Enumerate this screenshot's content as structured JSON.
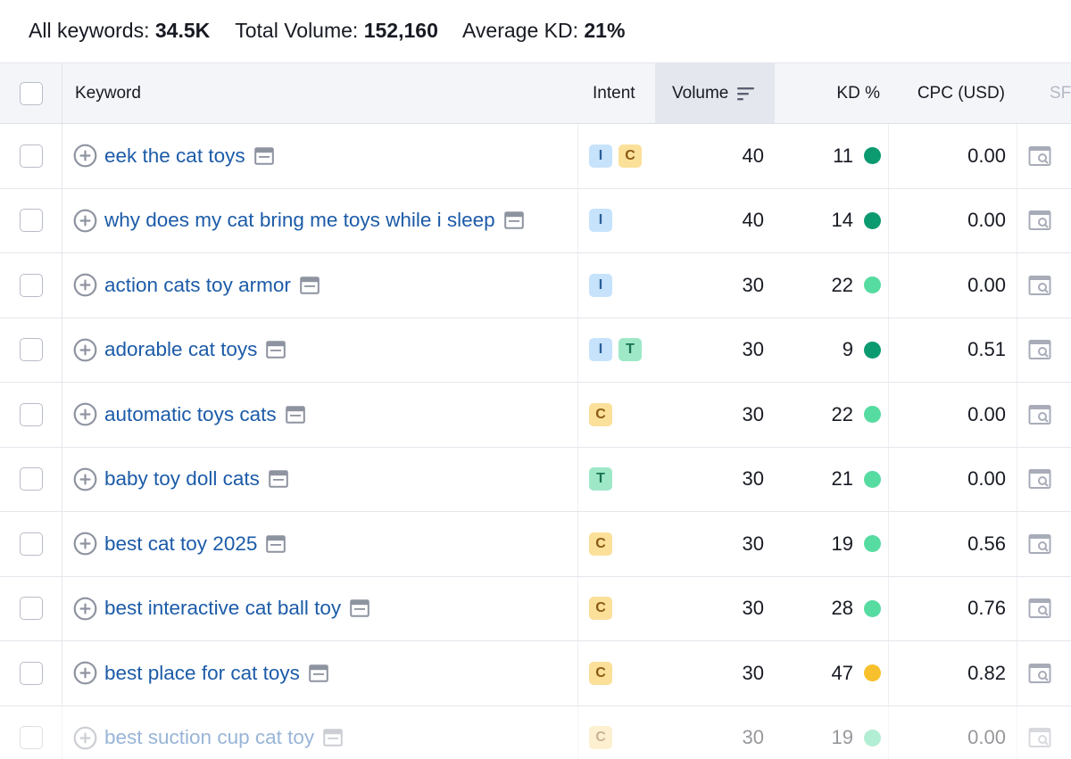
{
  "summary": {
    "all_keywords_label": "All keywords:",
    "all_keywords_value": "34.5K",
    "total_volume_label": "Total Volume:",
    "total_volume_value": "152,160",
    "avg_kd_label": "Average KD:",
    "avg_kd_value": "21%"
  },
  "columns": {
    "keyword": "Keyword",
    "intent": "Intent",
    "volume": "Volume",
    "kd": "KD %",
    "cpc": "CPC (USD)",
    "serp": "SF"
  },
  "colors": {
    "kd_easy": "#0c9a70",
    "kd_possible": "#56dba0",
    "kd_medium": "#f7c02c"
  },
  "rows": [
    {
      "keyword": "eek the cat toys",
      "intents": [
        "I",
        "C"
      ],
      "volume": "40",
      "kd": "11",
      "kd_color": "#0c9a70",
      "cpc": "0.00"
    },
    {
      "keyword": "why does my cat bring me toys while i sleep",
      "intents": [
        "I"
      ],
      "volume": "40",
      "kd": "14",
      "kd_color": "#0c9a70",
      "cpc": "0.00"
    },
    {
      "keyword": "action cats toy armor",
      "intents": [
        "I"
      ],
      "volume": "30",
      "kd": "22",
      "kd_color": "#56dba0",
      "cpc": "0.00"
    },
    {
      "keyword": "adorable cat toys",
      "intents": [
        "I",
        "T"
      ],
      "volume": "30",
      "kd": "9",
      "kd_color": "#0c9a70",
      "cpc": "0.51"
    },
    {
      "keyword": "automatic toys cats",
      "intents": [
        "C"
      ],
      "volume": "30",
      "kd": "22",
      "kd_color": "#56dba0",
      "cpc": "0.00"
    },
    {
      "keyword": "baby toy doll cats",
      "intents": [
        "T"
      ],
      "volume": "30",
      "kd": "21",
      "kd_color": "#56dba0",
      "cpc": "0.00"
    },
    {
      "keyword": "best cat toy 2025",
      "intents": [
        "C"
      ],
      "volume": "30",
      "kd": "19",
      "kd_color": "#56dba0",
      "cpc": "0.56"
    },
    {
      "keyword": "best interactive cat ball toy",
      "intents": [
        "C"
      ],
      "volume": "30",
      "kd": "28",
      "kd_color": "#56dba0",
      "cpc": "0.76"
    },
    {
      "keyword": "best place for cat toys",
      "intents": [
        "C"
      ],
      "volume": "30",
      "kd": "47",
      "kd_color": "#f7c02c",
      "cpc": "0.82"
    },
    {
      "keyword": "best suction cup cat toy",
      "intents": [
        "C"
      ],
      "volume": "30",
      "kd": "19",
      "kd_color": "#56dba0",
      "cpc": "0.00"
    }
  ]
}
